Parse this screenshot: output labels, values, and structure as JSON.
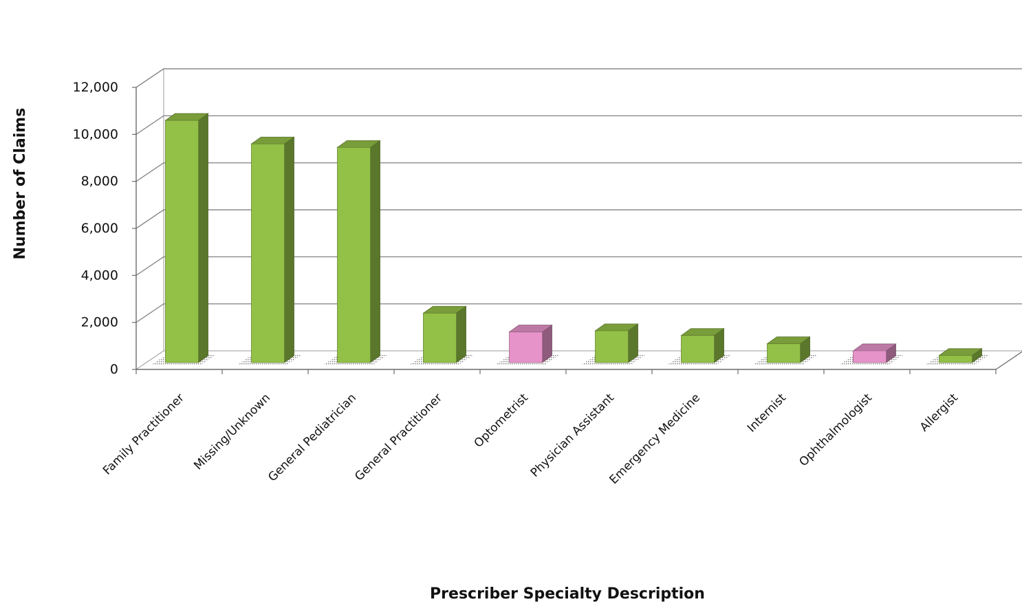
{
  "chart_data": {
    "type": "bar",
    "xlabel": "Prescriber Specialty Description",
    "ylabel": "Number of Claims",
    "ylim": [
      0,
      12000
    ],
    "yticks": [
      0,
      2000,
      4000,
      6000,
      8000,
      10000,
      12000
    ],
    "ytick_labels": [
      "0",
      "2,000",
      "4,000",
      "6,000",
      "8,000",
      "10,000",
      "12,000"
    ],
    "grid": true,
    "legend": "none",
    "style": "3d-column",
    "categories": [
      "Family Practitioner",
      "Missing/Unknown",
      "General Pediatrician",
      "General Practitioner",
      "Optometrist",
      "Physician Assistant",
      "Emergency Medicine",
      "Internist",
      "Ophthalmologist",
      "Allergist"
    ],
    "values": [
      10300,
      9300,
      9150,
      2100,
      1300,
      1350,
      1150,
      800,
      500,
      300
    ],
    "bar_colors": [
      "#93c047",
      "#93c047",
      "#93c047",
      "#93c047",
      "#e693c9",
      "#93c047",
      "#93c047",
      "#93c047",
      "#e693c9",
      "#93c047"
    ]
  }
}
